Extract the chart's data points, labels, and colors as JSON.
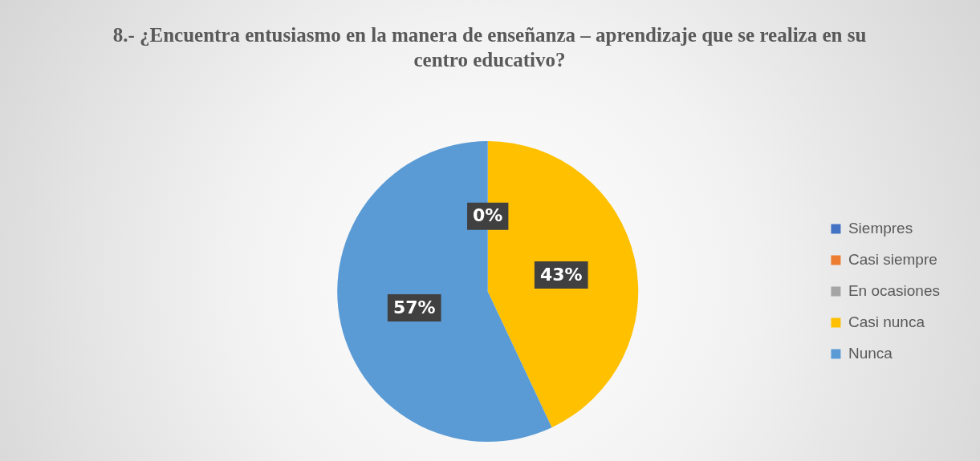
{
  "chart_data": {
    "type": "pie",
    "title": "8.- ¿Encuentra entusiasmo en la manera de enseñanza – aprendizaje que se realiza en su centro educativo?",
    "categories": [
      "Siempres",
      "Casi siempre",
      "En ocasiones",
      "Casi nunca",
      "Nunca"
    ],
    "values": [
      0,
      0,
      0,
      43,
      57
    ],
    "colors": [
      "#4472c4",
      "#ed7d31",
      "#a5a5a5",
      "#ffc000",
      "#5b9bd5"
    ],
    "value_labels": [
      "0%",
      null,
      null,
      "43%",
      "57%"
    ],
    "legend": "right"
  }
}
